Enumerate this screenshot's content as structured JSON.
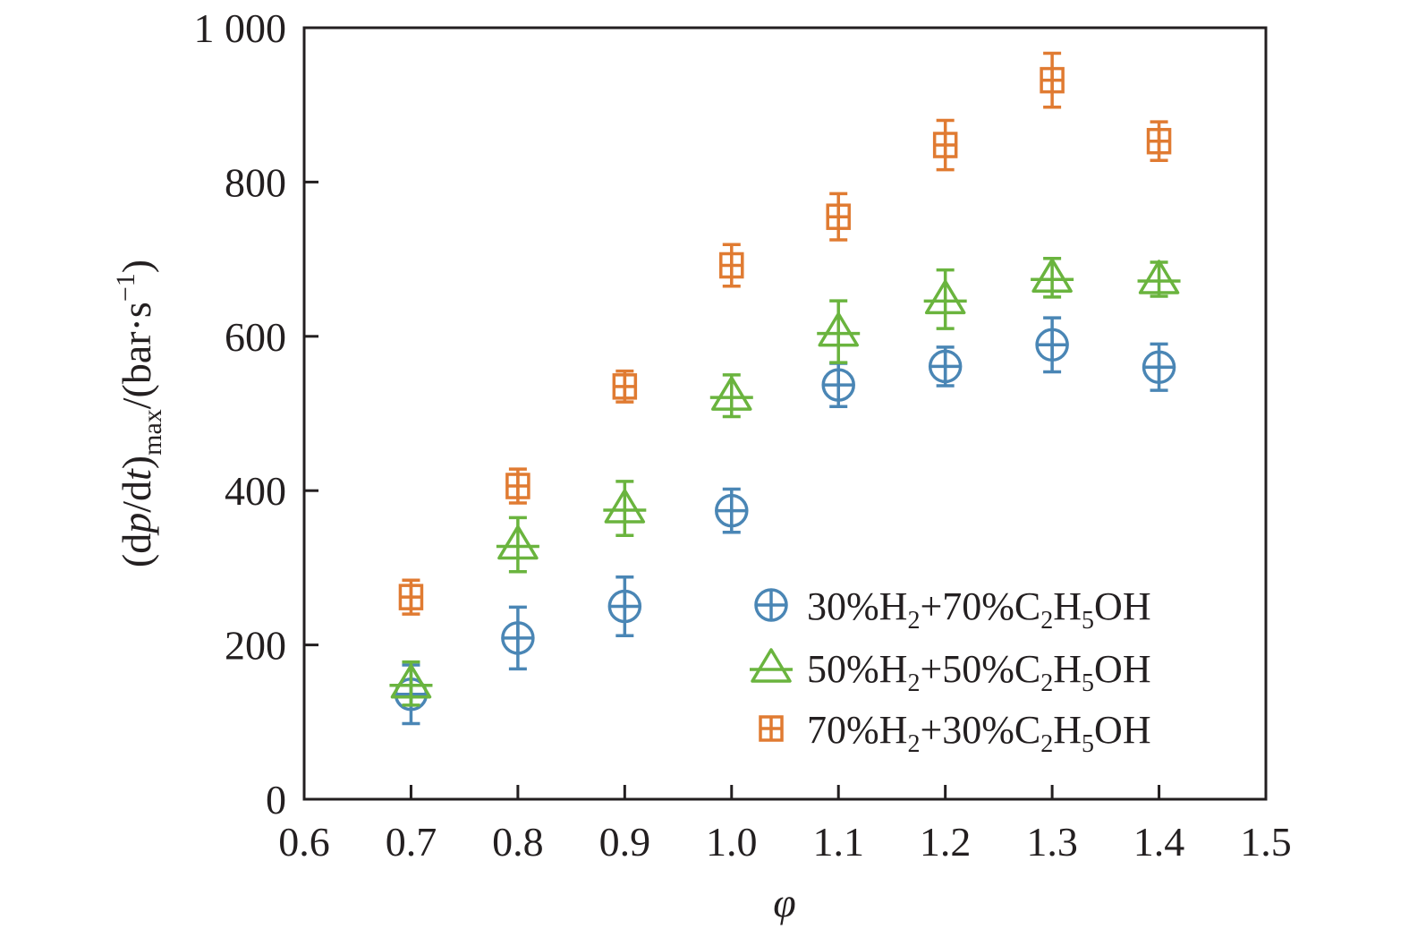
{
  "chart_data": {
    "type": "scatter",
    "xlabel": "φ",
    "ylabel": {
      "open": "(d",
      "p": "p",
      "slash": "/d",
      "t": "t",
      "close": ")",
      "sub": "max",
      "unit_open": "/(bar·s",
      "sup": "−1",
      "unit_close": ")"
    },
    "xlim": [
      0.6,
      1.5
    ],
    "ylim": [
      0,
      1000
    ],
    "xticks": [
      0.6,
      0.7,
      0.8,
      0.9,
      1.0,
      1.1,
      1.2,
      1.3,
      1.4,
      1.5
    ],
    "xtick_labels": [
      "0.6",
      "0.7",
      "0.8",
      "0.9",
      "1.0",
      "1.1",
      "1.2",
      "1.3",
      "1.4",
      "1.5"
    ],
    "yticks": [
      0,
      200,
      400,
      600,
      800,
      1000
    ],
    "ytick_labels": [
      "0",
      "200",
      "400",
      "600",
      "800",
      "1 000"
    ],
    "grid": false,
    "legend_position": "lower-right",
    "series": [
      {
        "name": "30%H2+70%C2H5OH",
        "marker": "circle-plus",
        "color": "#4a86b5",
        "legend_parts": [
          {
            "t": "30%H"
          },
          {
            "t": "2",
            "sub": true
          },
          {
            "t": "+70%C"
          },
          {
            "t": "2",
            "sub": true
          },
          {
            "t": "H"
          },
          {
            "t": "5",
            "sub": true
          },
          {
            "t": "OH"
          }
        ],
        "x": [
          0.7,
          0.8,
          0.9,
          1.0,
          1.1,
          1.2,
          1.3,
          1.4
        ],
        "y": [
          136,
          209,
          250,
          374,
          537,
          561,
          589,
          560
        ],
        "err": [
          38,
          40,
          38,
          28,
          28,
          25,
          35,
          30
        ]
      },
      {
        "name": "50%H2+50%C2H5OH",
        "marker": "triangle-cross",
        "color": "#6ab43e",
        "legend_parts": [
          {
            "t": "50%H"
          },
          {
            "t": "2",
            "sub": true
          },
          {
            "t": "+50%C"
          },
          {
            "t": "2",
            "sub": true
          },
          {
            "t": "H"
          },
          {
            "t": "5",
            "sub": true
          },
          {
            "t": "OH"
          }
        ],
        "x": [
          0.7,
          0.8,
          0.9,
          1.0,
          1.1,
          1.2,
          1.3,
          1.4
        ],
        "y": [
          150,
          330,
          377,
          523,
          606,
          648,
          676,
          674
        ],
        "err": [
          28,
          35,
          35,
          27,
          40,
          38,
          25,
          22
        ]
      },
      {
        "name": "70%H2+30%C2H5OH",
        "marker": "square-plus",
        "color": "#e07b32",
        "legend_parts": [
          {
            "t": "70%H"
          },
          {
            "t": "2",
            "sub": true
          },
          {
            "t": "+30%C"
          },
          {
            "t": "2",
            "sub": true
          },
          {
            "t": "H"
          },
          {
            "t": "5",
            "sub": true
          },
          {
            "t": "OH"
          }
        ],
        "x": [
          0.7,
          0.8,
          0.9,
          1.0,
          1.1,
          1.2,
          1.3,
          1.4
        ],
        "y": [
          262,
          406,
          535,
          692,
          755,
          848,
          932,
          853
        ],
        "err": [
          22,
          22,
          20,
          27,
          30,
          32,
          35,
          25
        ]
      }
    ]
  }
}
